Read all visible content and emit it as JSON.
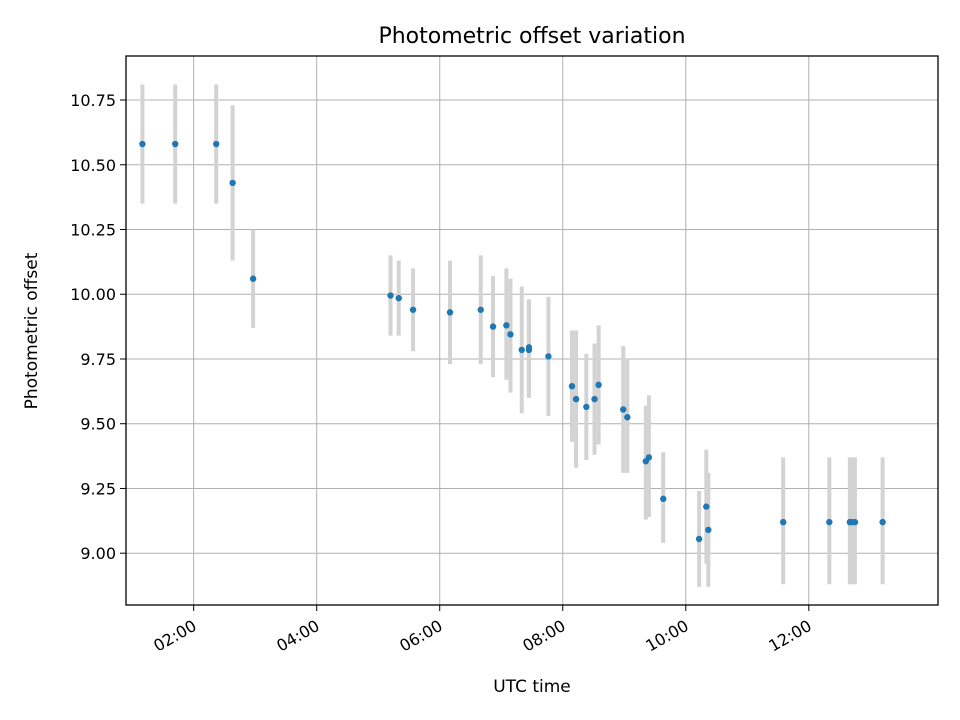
{
  "chart_data": {
    "type": "scatter",
    "title": "Photometric offset variation",
    "xlabel": "UTC time",
    "ylabel": "Photometric offset",
    "x_axis": "time (HH:MM)",
    "xlim": [
      "00:54",
      "14:06"
    ],
    "ylim": [
      8.8,
      10.92
    ],
    "x_ticks": [
      "02:00",
      "04:00",
      "06:00",
      "08:00",
      "10:00",
      "12:00"
    ],
    "y_ticks": [
      "9.00",
      "9.25",
      "9.50",
      "9.75",
      "10.00",
      "10.25",
      "10.50",
      "10.75"
    ],
    "grid": true,
    "marker_color": "#1f77b4",
    "errorbar_color": "#d3d3d3",
    "points": [
      {
        "t": "01:10",
        "y": 10.58,
        "lo": 10.35,
        "hi": 10.81
      },
      {
        "t": "01:42",
        "y": 10.58,
        "lo": 10.35,
        "hi": 10.81
      },
      {
        "t": "02:22",
        "y": 10.58,
        "lo": 10.35,
        "hi": 10.81
      },
      {
        "t": "02:38",
        "y": 10.43,
        "lo": 10.13,
        "hi": 10.73
      },
      {
        "t": "02:58",
        "y": 10.06,
        "lo": 9.87,
        "hi": 10.25
      },
      {
        "t": "05:12",
        "y": 9.995,
        "lo": 9.84,
        "hi": 10.15
      },
      {
        "t": "05:20",
        "y": 9.985,
        "lo": 9.84,
        "hi": 10.13
      },
      {
        "t": "05:34",
        "y": 9.94,
        "lo": 9.78,
        "hi": 10.1
      },
      {
        "t": "06:10",
        "y": 9.93,
        "lo": 9.73,
        "hi": 10.13
      },
      {
        "t": "06:40",
        "y": 9.94,
        "lo": 9.73,
        "hi": 10.15
      },
      {
        "t": "06:52",
        "y": 9.875,
        "lo": 9.68,
        "hi": 10.07
      },
      {
        "t": "07:05",
        "y": 9.88,
        "lo": 9.67,
        "hi": 10.1
      },
      {
        "t": "07:09",
        "y": 9.845,
        "lo": 9.62,
        "hi": 10.06
      },
      {
        "t": "07:20",
        "y": 9.785,
        "lo": 9.54,
        "hi": 10.03
      },
      {
        "t": "07:27",
        "y": 9.795,
        "lo": 9.6,
        "hi": 9.98
      },
      {
        "t": "07:27",
        "y": 9.785,
        "lo": 9.6,
        "hi": 9.98
      },
      {
        "t": "07:46",
        "y": 9.76,
        "lo": 9.53,
        "hi": 9.99
      },
      {
        "t": "08:09",
        "y": 9.645,
        "lo": 9.43,
        "hi": 9.86
      },
      {
        "t": "08:13",
        "y": 9.595,
        "lo": 9.33,
        "hi": 9.86
      },
      {
        "t": "08:23",
        "y": 9.565,
        "lo": 9.36,
        "hi": 9.77
      },
      {
        "t": "08:31",
        "y": 9.595,
        "lo": 9.38,
        "hi": 9.81
      },
      {
        "t": "08:35",
        "y": 9.65,
        "lo": 9.42,
        "hi": 9.88
      },
      {
        "t": "08:59",
        "y": 9.555,
        "lo": 9.31,
        "hi": 9.8
      },
      {
        "t": "09:03",
        "y": 9.525,
        "lo": 9.31,
        "hi": 9.75
      },
      {
        "t": "09:21",
        "y": 9.355,
        "lo": 9.13,
        "hi": 9.57
      },
      {
        "t": "09:24",
        "y": 9.37,
        "lo": 9.14,
        "hi": 9.61
      },
      {
        "t": "09:38",
        "y": 9.21,
        "lo": 9.04,
        "hi": 9.39
      },
      {
        "t": "10:13",
        "y": 9.055,
        "lo": 8.87,
        "hi": 9.24
      },
      {
        "t": "10:20",
        "y": 9.18,
        "lo": 8.96,
        "hi": 9.4
      },
      {
        "t": "10:22",
        "y": 9.09,
        "lo": 8.87,
        "hi": 9.31
      },
      {
        "t": "11:35",
        "y": 9.12,
        "lo": 8.88,
        "hi": 9.37
      },
      {
        "t": "12:20",
        "y": 9.12,
        "lo": 8.88,
        "hi": 9.37
      },
      {
        "t": "12:40",
        "y": 9.12,
        "lo": 8.88,
        "hi": 9.37
      },
      {
        "t": "12:42",
        "y": 9.12,
        "lo": 8.88,
        "hi": 9.37
      },
      {
        "t": "12:45",
        "y": 9.12,
        "lo": 8.88,
        "hi": 9.37
      },
      {
        "t": "13:12",
        "y": 9.12,
        "lo": 8.88,
        "hi": 9.37
      }
    ]
  }
}
